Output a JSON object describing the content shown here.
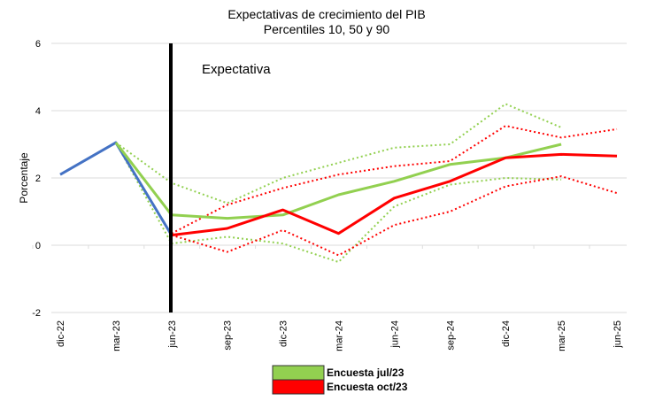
{
  "chart_data": {
    "type": "line",
    "title": "Expectativas de crecimiento del PIB",
    "subtitle": "Percentiles 10, 50 y 90",
    "xlabel": "",
    "ylabel": "Porcentaje",
    "categories": [
      "dic-22",
      "mar-23",
      "jun-23",
      "sep-23",
      "dic-23",
      "mar-24",
      "jun-24",
      "sep-24",
      "dic-24",
      "mar-25",
      "jun-25"
    ],
    "ylim": [
      -2,
      6
    ],
    "yticks": [
      -2,
      0,
      2,
      4,
      6
    ],
    "grid": true,
    "legend_position": "bottom",
    "annotation": "Expectativa",
    "divider_at": "jun-23",
    "series": [
      {
        "key": "historic",
        "color": "#4472C4",
        "style": "solid",
        "values": [
          2.1,
          3.05,
          0.3,
          null,
          null,
          null,
          null,
          null,
          null,
          null,
          null
        ]
      },
      {
        "key": "jul_p50",
        "name": "Encuesta jul/23",
        "color": "#92D050",
        "style": "solid",
        "values": [
          null,
          3.05,
          0.9,
          0.8,
          0.9,
          1.5,
          1.9,
          2.4,
          2.6,
          3.0,
          null
        ]
      },
      {
        "key": "jul_p90",
        "color": "#92D050",
        "style": "dotted",
        "values": [
          null,
          3.05,
          1.85,
          1.25,
          2.0,
          2.45,
          2.9,
          3.0,
          4.2,
          3.5,
          null
        ]
      },
      {
        "key": "jul_p10",
        "color": "#92D050",
        "style": "dotted",
        "values": [
          null,
          3.05,
          0.05,
          0.25,
          0.05,
          -0.5,
          1.15,
          1.8,
          2.0,
          1.95,
          null
        ]
      },
      {
        "key": "oct_p50",
        "name": "Encuesta oct/23",
        "color": "#FF0000",
        "style": "solid",
        "values": [
          null,
          null,
          0.3,
          0.5,
          1.05,
          0.35,
          1.4,
          1.9,
          2.6,
          2.7,
          2.65
        ]
      },
      {
        "key": "oct_p90",
        "color": "#FF0000",
        "style": "dotted",
        "values": [
          null,
          null,
          0.35,
          1.2,
          1.7,
          2.1,
          2.35,
          2.5,
          3.55,
          3.2,
          3.45
        ]
      },
      {
        "key": "oct_p10",
        "color": "#FF0000",
        "style": "dotted",
        "values": [
          null,
          null,
          0.3,
          -0.2,
          0.45,
          -0.3,
          0.6,
          1.0,
          1.75,
          2.05,
          1.55
        ]
      }
    ],
    "legend": [
      {
        "label": "Encuesta jul/23",
        "color": "#92D050"
      },
      {
        "label": "Encuesta oct/23",
        "color": "#FF0000"
      }
    ]
  }
}
